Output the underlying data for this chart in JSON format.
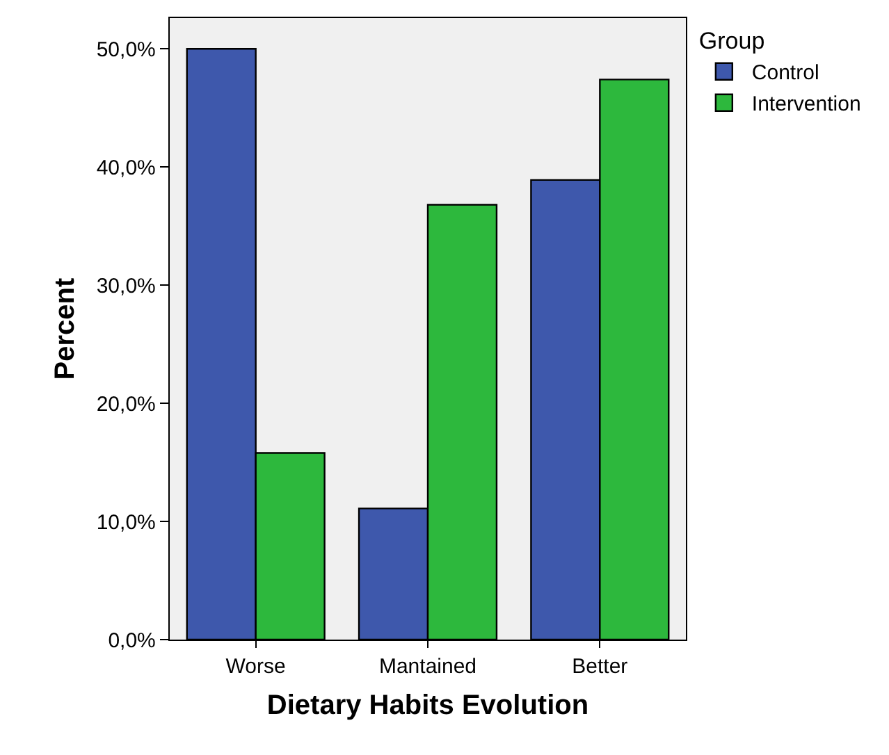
{
  "chart_data": {
    "type": "bar",
    "xlabel": "Dietary Habits Evolution",
    "ylabel": "Percent",
    "legend_title": "Group",
    "legend": "top right",
    "categories": [
      "Worse",
      "Mantained",
      "Better"
    ],
    "series": [
      {
        "name": "Control",
        "color": "#3e58ac",
        "values": [
          50.0,
          11.1,
          38.9
        ]
      },
      {
        "name": "Intervention",
        "color": "#2db83d",
        "values": [
          15.8,
          36.8,
          47.4
        ]
      }
    ],
    "ylim": [
      0,
      52.6
    ],
    "yticks": [
      {
        "value": 0,
        "label": "0,0%"
      },
      {
        "value": 10,
        "label": "10,0%"
      },
      {
        "value": 20,
        "label": "20,0%"
      },
      {
        "value": 30,
        "label": "30,0%"
      },
      {
        "value": 40,
        "label": "40,0%"
      },
      {
        "value": 50,
        "label": "50,0%"
      }
    ],
    "grid": false
  }
}
